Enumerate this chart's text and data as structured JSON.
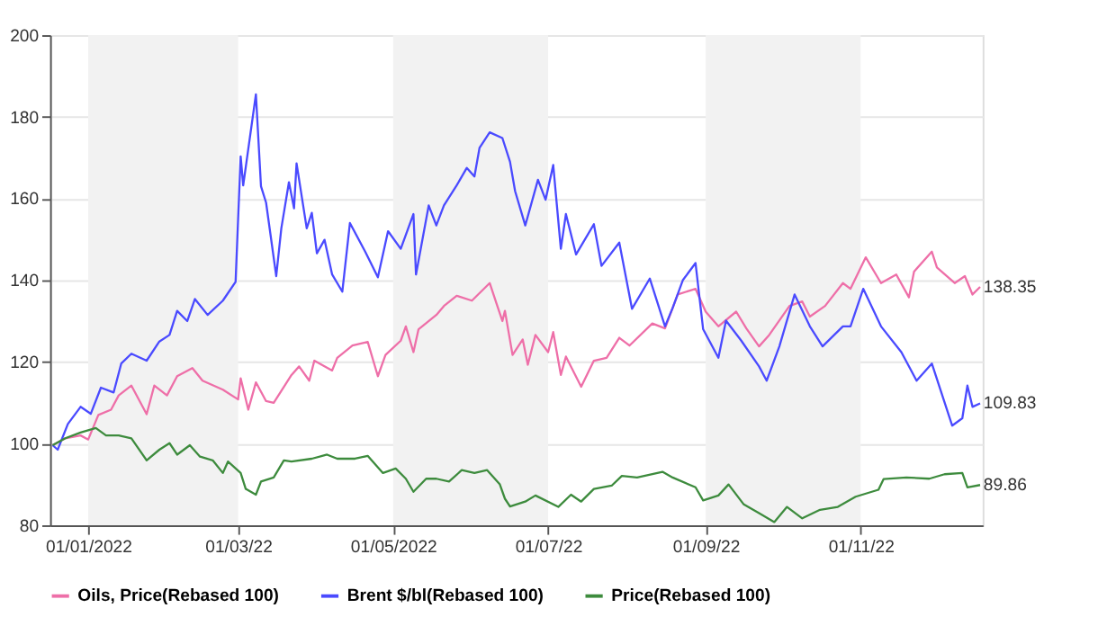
{
  "chart_data": {
    "type": "line",
    "xlim": [
      "2021-12-17",
      "2022-12-19"
    ],
    "ylim": [
      80,
      200
    ],
    "yticks": [
      80,
      100,
      120,
      140,
      160,
      180,
      200
    ],
    "xticks": [
      {
        "value": "2022-01-01",
        "label": "01/01/2022"
      },
      {
        "value": "2022-03-01",
        "label": "01/03/22"
      },
      {
        "value": "2022-05-01",
        "label": "01/05/2022"
      },
      {
        "value": "2022-07-01",
        "label": "01/07/22"
      },
      {
        "value": "2022-09-01",
        "label": "01/09/22"
      },
      {
        "value": "2022-11-01",
        "label": "01/11/22"
      }
    ],
    "grid": "y",
    "legend": "bottom",
    "line_style": "solid",
    "bands": [
      {
        "axis": "x",
        "from": "2022-01-01",
        "to": "2022-03-01",
        "label": null,
        "color": "#f2f2f2"
      },
      {
        "axis": "x",
        "from": "2022-05-01",
        "to": "2022-07-01",
        "label": null,
        "color": "#f2f2f2"
      },
      {
        "axis": "x",
        "from": "2022-09-01",
        "to": "2022-11-01",
        "label": null,
        "color": "#f2f2f2"
      }
    ],
    "series": [
      {
        "name": "Oils, Price(Rebased 100)",
        "color": "#ee6fa8",
        "x": [
          "2021-12-18",
          "2021-12-23",
          "2021-12-29",
          "2022-01-01",
          "2022-01-05",
          "2022-01-10",
          "2022-01-13",
          "2022-01-18",
          "2022-01-24",
          "2022-01-27",
          "2022-02-01",
          "2022-02-05",
          "2022-02-11",
          "2022-02-15",
          "2022-02-23",
          "2022-03-01",
          "2022-03-02",
          "2022-03-05",
          "2022-03-08",
          "2022-03-12",
          "2022-03-15",
          "2022-03-22",
          "2022-03-25",
          "2022-03-29",
          "2022-03-31",
          "2022-04-07",
          "2022-04-09",
          "2022-04-15",
          "2022-04-21",
          "2022-04-25",
          "2022-04-28",
          "2022-05-04",
          "2022-05-06",
          "2022-05-09",
          "2022-05-11",
          "2022-05-18",
          "2022-05-21",
          "2022-05-26",
          "2022-06-01",
          "2022-06-08",
          "2022-06-11",
          "2022-06-13",
          "2022-06-14",
          "2022-06-17",
          "2022-06-21",
          "2022-06-23",
          "2022-06-26",
          "2022-07-01",
          "2022-07-03",
          "2022-07-06",
          "2022-07-08",
          "2022-07-14",
          "2022-07-19",
          "2022-07-24",
          "2022-07-29",
          "2022-08-02",
          "2022-08-11",
          "2022-08-16",
          "2022-08-21",
          "2022-08-28",
          "2022-09-01",
          "2022-09-06",
          "2022-09-13",
          "2022-09-17",
          "2022-09-22",
          "2022-09-26",
          "2022-10-04",
          "2022-10-09",
          "2022-10-12",
          "2022-10-18",
          "2022-10-25",
          "2022-10-28",
          "2022-11-03",
          "2022-11-09",
          "2022-11-15",
          "2022-11-20",
          "2022-11-22",
          "2022-11-29",
          "2022-12-01",
          "2022-12-08",
          "2022-12-12",
          "2022-12-15",
          "2022-12-18"
        ],
        "values": [
          99.6,
          101.3,
          102,
          101,
          107,
          108.3,
          111.8,
          114.2,
          107.2,
          114.2,
          111.8,
          116.5,
          118.5,
          115.4,
          113.2,
          110.8,
          116,
          108.3,
          115,
          110.4,
          110,
          116.8,
          118.9,
          115.4,
          120.3,
          117.9,
          121,
          124,
          124.9,
          116.5,
          121.7,
          125.2,
          128.7,
          122.4,
          128,
          131.5,
          133.7,
          136.2,
          135,
          139.3,
          133.7,
          130,
          132.5,
          121.7,
          125.5,
          119.3,
          126.6,
          122.4,
          127.3,
          116.8,
          121.3,
          113.9,
          120.3,
          121,
          125.9,
          124,
          129.4,
          128.2,
          136.5,
          137.9,
          132.3,
          128.7,
          132.3,
          128.2,
          123.8,
          126.6,
          133.7,
          134.8,
          131.1,
          133.7,
          139.3,
          137.9,
          145.6,
          139.3,
          141.4,
          135.8,
          142.1,
          147,
          143.1,
          139.3,
          141,
          136.5,
          138.35
        ]
      },
      {
        "name": "Brent $/bl(Rebased 100)",
        "color": "#4a4aff",
        "x": [
          "2021-12-18",
          "2021-12-20",
          "2021-12-24",
          "2021-12-29",
          "2022-01-02",
          "2022-01-06",
          "2022-01-11",
          "2022-01-14",
          "2022-01-18",
          "2022-01-24",
          "2022-01-29",
          "2022-02-02",
          "2022-02-05",
          "2022-02-09",
          "2022-02-12",
          "2022-02-17",
          "2022-02-23",
          "2022-02-28",
          "2022-03-02",
          "2022-03-03",
          "2022-03-08",
          "2022-03-10",
          "2022-03-12",
          "2022-03-16",
          "2022-03-18",
          "2022-03-21",
          "2022-03-23",
          "2022-03-24",
          "2022-03-28",
          "2022-03-30",
          "2022-04-01",
          "2022-04-04",
          "2022-04-07",
          "2022-04-11",
          "2022-04-14",
          "2022-04-20",
          "2022-04-25",
          "2022-04-29",
          "2022-05-04",
          "2022-05-09",
          "2022-05-10",
          "2022-05-15",
          "2022-05-18",
          "2022-05-21",
          "2022-05-26",
          "2022-05-30",
          "2022-06-02",
          "2022-06-04",
          "2022-06-08",
          "2022-06-13",
          "2022-06-16",
          "2022-06-18",
          "2022-06-22",
          "2022-06-27",
          "2022-06-30",
          "2022-07-03",
          "2022-07-06",
          "2022-07-08",
          "2022-07-12",
          "2022-07-19",
          "2022-07-22",
          "2022-07-29",
          "2022-08-03",
          "2022-08-10",
          "2022-08-16",
          "2022-08-19",
          "2022-08-23",
          "2022-08-28",
          "2022-08-31",
          "2022-09-06",
          "2022-09-09",
          "2022-09-15",
          "2022-09-22",
          "2022-09-25",
          "2022-09-30",
          "2022-10-06",
          "2022-10-12",
          "2022-10-17",
          "2022-10-25",
          "2022-10-28",
          "2022-11-02",
          "2022-11-09",
          "2022-11-17",
          "2022-11-23",
          "2022-11-29",
          "2022-12-07",
          "2022-12-11",
          "2022-12-13",
          "2022-12-15",
          "2022-12-18"
        ],
        "values": [
          99.6,
          98.5,
          104.8,
          109,
          107.3,
          113.7,
          112.5,
          119.6,
          122,
          120.3,
          125,
          126.6,
          132.5,
          130,
          135.4,
          131.5,
          135,
          139.6,
          170.3,
          163.2,
          185.5,
          163,
          159,
          141,
          152.7,
          164,
          157.6,
          168.6,
          152.7,
          156.5,
          146.6,
          149.9,
          141.4,
          137.2,
          154,
          147,
          140.7,
          152,
          147.7,
          156.2,
          141.4,
          158.3,
          153.4,
          158.3,
          163.2,
          167.5,
          165.4,
          172.4,
          176.2,
          174.8,
          169,
          161.8,
          153.4,
          164.6,
          159.7,
          168.2,
          147.7,
          156.2,
          146.3,
          153.7,
          143.5,
          149.2,
          133,
          140.4,
          128.7,
          133.2,
          140,
          144.2,
          128,
          121,
          130.1,
          125.2,
          118.9,
          115.4,
          123.8,
          136.5,
          128.7,
          123.8,
          128.7,
          128.7,
          137.9,
          128.7,
          122.4,
          115.4,
          119.6,
          104.4,
          106.2,
          114.2,
          109,
          109.83
        ]
      },
      {
        "name": "Price(Rebased 100)",
        "color": "#3d8b3d",
        "x": [
          "2021-12-18",
          "2021-12-23",
          "2021-12-29",
          "2022-01-04",
          "2022-01-08",
          "2022-01-13",
          "2022-01-18",
          "2022-01-24",
          "2022-01-29",
          "2022-02-02",
          "2022-02-05",
          "2022-02-10",
          "2022-02-14",
          "2022-02-19",
          "2022-02-23",
          "2022-02-25",
          "2022-03-02",
          "2022-03-04",
          "2022-03-08",
          "2022-03-10",
          "2022-03-15",
          "2022-03-19",
          "2022-03-22",
          "2022-03-30",
          "2022-04-05",
          "2022-04-09",
          "2022-04-16",
          "2022-04-21",
          "2022-04-27",
          "2022-05-02",
          "2022-05-06",
          "2022-05-09",
          "2022-05-14",
          "2022-05-18",
          "2022-05-23",
          "2022-05-28",
          "2022-06-02",
          "2022-06-07",
          "2022-06-12",
          "2022-06-14",
          "2022-06-16",
          "2022-06-22",
          "2022-06-26",
          "2022-07-05",
          "2022-07-10",
          "2022-07-14",
          "2022-07-19",
          "2022-07-26",
          "2022-07-30",
          "2022-08-05",
          "2022-08-15",
          "2022-08-19",
          "2022-08-28",
          "2022-08-31",
          "2022-09-06",
          "2022-09-10",
          "2022-09-16",
          "2022-09-22",
          "2022-09-28",
          "2022-10-03",
          "2022-10-09",
          "2022-10-16",
          "2022-10-23",
          "2022-10-30",
          "2022-11-08",
          "2022-11-10",
          "2022-11-19",
          "2022-11-28",
          "2022-12-04",
          "2022-12-11",
          "2022-12-13",
          "2022-12-18"
        ],
        "values": [
          99.6,
          101.3,
          102.7,
          103.8,
          102,
          102,
          101.3,
          95.9,
          98.5,
          100.1,
          97.3,
          99.6,
          96.8,
          95.9,
          92.8,
          95.6,
          92.8,
          88.9,
          87.5,
          90.7,
          91.7,
          95.9,
          95.6,
          96.3,
          97.3,
          96.3,
          96.3,
          97,
          92.8,
          93.9,
          91.4,
          88.2,
          91.4,
          91.4,
          90.7,
          93.5,
          92.8,
          93.5,
          90,
          86.5,
          84.6,
          85.8,
          87.3,
          84.5,
          87.5,
          85.8,
          88.9,
          89.7,
          92.1,
          91.7,
          93.1,
          91.7,
          89.3,
          86.1,
          87.3,
          90,
          85.1,
          83,
          80.8,
          84.5,
          81.7,
          83.8,
          84.5,
          87,
          88.7,
          91.3,
          91.7,
          91.4,
          92.5,
          92.8,
          89.3,
          89.86
        ]
      }
    ],
    "annotations": [
      {
        "text": "138.35",
        "x": "2022-12-18",
        "y": 138.35
      },
      {
        "text": "109.83",
        "x": "2022-12-18",
        "y": 109.83
      },
      {
        "text": "89.86",
        "x": "2022-12-18",
        "y": 89.86
      }
    ]
  }
}
